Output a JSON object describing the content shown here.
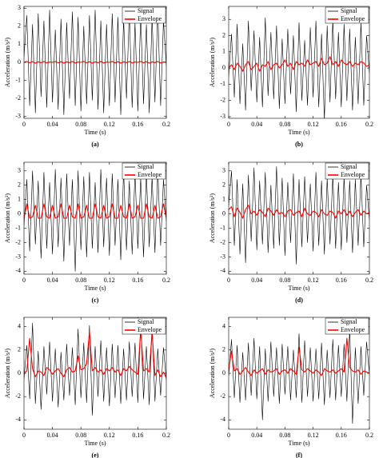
{
  "chart_data": [
    {
      "type": "line",
      "label": "(a)",
      "xlabel": "Time (s)",
      "ylabel": "Acceleration (m/s²)",
      "legend": "upper right",
      "xlim": [
        0,
        0.2
      ],
      "ylim": [
        -3.1,
        3.1
      ],
      "xticks": [
        0,
        0.04,
        0.08,
        0.12,
        0.16,
        0.2
      ],
      "yticks": [
        -3,
        -2,
        -1,
        0,
        1,
        2,
        3
      ],
      "x": [
        0,
        0.004,
        0.008,
        0.012,
        0.016,
        0.02,
        0.024,
        0.028,
        0.032,
        0.036,
        0.04,
        0.044,
        0.048,
        0.052,
        0.056,
        0.06,
        0.064,
        0.068,
        0.072,
        0.076,
        0.08,
        0.084,
        0.088,
        0.092,
        0.096,
        0.1,
        0.104,
        0.108,
        0.112,
        0.116,
        0.12,
        0.124,
        0.128,
        0.132,
        0.136,
        0.14,
        0.144,
        0.148,
        0.152,
        0.156,
        0.16,
        0.164,
        0.168,
        0.172,
        0.176,
        0.18,
        0.184,
        0.188,
        0.192,
        0.196,
        0.2
      ],
      "series": [
        {
          "name": "Signal",
          "color": "#000000",
          "values": [
            0.3,
            2.6,
            -2.4,
            2.1,
            -2.8,
            2.7,
            -1.9,
            2.3,
            -2.5,
            2.9,
            -2.2,
            1.8,
            -2.6,
            2.4,
            -2.9,
            2.2,
            -2.0,
            2.8,
            -2.4,
            2.5,
            -2.7,
            2.0,
            -2.3,
            2.6,
            -2.1,
            2.9,
            -2.6,
            2.3,
            -2.8,
            2.1,
            -2.4,
            2.7,
            -2.2,
            2.5,
            -2.9,
            2.4,
            -2.0,
            2.8,
            -2.5,
            2.2,
            -2.7,
            2.6,
            -2.3,
            2.1,
            -2.8,
            2.5,
            -2.2,
            2.9,
            -2.4,
            2.3,
            -0.2
          ]
        },
        {
          "name": "Envelope",
          "color": "#ff0000",
          "values": [
            0,
            0.05,
            -0.03,
            0.04,
            -0.05,
            0.03,
            -0.02,
            0.05,
            -0.04,
            0.02,
            0,
            0.05,
            -0.03,
            0.04,
            -0.05,
            0.03,
            -0.02,
            0.05,
            -0.04,
            0.02,
            0,
            0.05,
            -0.03,
            0.04,
            -0.05,
            0.03,
            -0.02,
            0.05,
            -0.04,
            0.02,
            0,
            0.05,
            -0.03,
            0.04,
            -0.05,
            0.03,
            -0.02,
            0.05,
            -0.04,
            0.02,
            0,
            0.05,
            -0.03,
            0.04,
            -0.05,
            0.03,
            -0.02,
            0.05,
            -0.04,
            0.02,
            0
          ]
        }
      ]
    },
    {
      "type": "line",
      "label": "(b)",
      "xlabel": "Time (s)",
      "ylabel": "Acceleration (m/s²)",
      "legend": "upper right",
      "xlim": [
        0,
        0.2
      ],
      "ylim": [
        -3.1,
        3.8
      ],
      "xticks": [
        0,
        0.04,
        0.08,
        0.12,
        0.16,
        0.2
      ],
      "yticks": [
        -3,
        -2,
        -1,
        0,
        1,
        2,
        3
      ],
      "x": [
        0,
        0.004,
        0.008,
        0.012,
        0.016,
        0.02,
        0.024,
        0.028,
        0.032,
        0.036,
        0.04,
        0.044,
        0.048,
        0.052,
        0.056,
        0.06,
        0.064,
        0.068,
        0.072,
        0.076,
        0.08,
        0.084,
        0.088,
        0.092,
        0.096,
        0.1,
        0.104,
        0.108,
        0.112,
        0.116,
        0.12,
        0.124,
        0.128,
        0.132,
        0.136,
        0.14,
        0.144,
        0.148,
        0.152,
        0.156,
        0.16,
        0.164,
        0.168,
        0.172,
        0.176,
        0.18,
        0.184,
        0.188,
        0.192,
        0.196,
        0.2
      ],
      "series": [
        {
          "name": "Signal",
          "color": "#000000",
          "values": [
            -0.5,
            2.1,
            -1.8,
            2.7,
            -2.2,
            1.5,
            -2.6,
            2.9,
            -1.4,
            2.3,
            -2.1,
            1.9,
            -2.4,
            3.1,
            -1.7,
            2.2,
            -1.9,
            2.6,
            -2.5,
            1.8,
            -2.2,
            2.4,
            -1.6,
            2.0,
            -2.7,
            2.8,
            -2.0,
            1.7,
            -2.3,
            2.5,
            -1.8,
            2.9,
            -2.4,
            2.1,
            -3.2,
            2.6,
            -2.1,
            3.0,
            -1.9,
            2.2,
            -2.4,
            2.7,
            -2.0,
            2.4,
            -2.6,
            1.9,
            -2.2,
            2.8,
            -2.3,
            2.0,
            -0.3
          ]
        },
        {
          "name": "Envelope",
          "color": "#ff0000",
          "values": [
            0,
            0.2,
            -0.1,
            0.3,
            0.1,
            -0.2,
            0.2,
            0.4,
            -0.1,
            0.1,
            0.3,
            -0.2,
            0.2,
            0.1,
            0.4,
            -0.1,
            0.2,
            0.3,
            0,
            0.2,
            0.5,
            0.1,
            0.3,
            -0.1,
            0.4,
            0.2,
            0.3,
            0.1,
            0.5,
            0.2,
            0.3,
            0.4,
            0.1,
            0.6,
            0.2,
            0.3,
            0.7,
            0.2,
            0.4,
            0.1,
            0.5,
            0.3,
            0.2,
            0.4,
            0.1,
            0.3,
            0.2,
            0.4,
            0.3,
            0.1,
            0.2
          ]
        }
      ]
    },
    {
      "type": "line",
      "label": "(c)",
      "xlabel": "Time (s)",
      "ylabel": "Acceleration (m/s²)",
      "legend": "upper right",
      "xlim": [
        0,
        0.2
      ],
      "ylim": [
        -4.2,
        3.6
      ],
      "xticks": [
        0,
        0.04,
        0.08,
        0.12,
        0.16,
        0.2
      ],
      "yticks": [
        -4,
        -3,
        -2,
        -1,
        0,
        1,
        2,
        3
      ],
      "x": [
        0,
        0.004,
        0.008,
        0.012,
        0.016,
        0.02,
        0.024,
        0.028,
        0.032,
        0.036,
        0.04,
        0.044,
        0.048,
        0.052,
        0.056,
        0.06,
        0.064,
        0.068,
        0.072,
        0.076,
        0.08,
        0.084,
        0.088,
        0.092,
        0.096,
        0.1,
        0.104,
        0.108,
        0.112,
        0.116,
        0.12,
        0.124,
        0.128,
        0.132,
        0.136,
        0.14,
        0.144,
        0.148,
        0.152,
        0.156,
        0.16,
        0.164,
        0.168,
        0.172,
        0.176,
        0.18,
        0.184,
        0.188,
        0.192,
        0.196,
        0.2
      ],
      "series": [
        {
          "name": "Signal",
          "color": "#000000",
          "values": [
            -0.8,
            2.4,
            -2.6,
            3.0,
            -2.1,
            2.3,
            -3.1,
            2.9,
            -2.4,
            2.2,
            -2.8,
            3.1,
            -2.3,
            2.5,
            -3.3,
            2.8,
            -2.2,
            2.4,
            -4.0,
            3.0,
            -2.5,
            2.6,
            -3.0,
            2.9,
            -2.4,
            2.2,
            -2.7,
            3.1,
            -2.3,
            2.5,
            -2.9,
            2.8,
            -2.2,
            2.4,
            -3.2,
            3.0,
            -2.5,
            2.3,
            -2.8,
            2.9,
            -2.4,
            2.5,
            -3.0,
            2.8,
            -2.3,
            2.6,
            -2.7,
            3.1,
            -2.2,
            2.4,
            -0.5
          ]
        },
        {
          "name": "Envelope",
          "color": "#ff0000",
          "values": [
            -0.3,
            0.7,
            -0.3,
            -0.2,
            0.6,
            -0.3,
            -0.3,
            0.7,
            -0.2,
            -0.3,
            0.6,
            -0.3,
            -0.2,
            0.7,
            -0.3,
            -0.3,
            0.6,
            -0.2,
            -0.3,
            0.7,
            -0.3,
            -0.2,
            0.6,
            -0.3,
            -0.3,
            0.7,
            -0.2,
            -0.3,
            0.6,
            -0.3,
            -0.2,
            0.7,
            -0.3,
            -0.3,
            0.6,
            -0.2,
            -0.3,
            0.7,
            -0.3,
            -0.2,
            0.6,
            -0.3,
            -0.3,
            0.7,
            -0.2,
            -0.3,
            0.6,
            -0.3,
            -0.2,
            0.7,
            -0.3
          ]
        }
      ]
    },
    {
      "type": "line",
      "label": "(d)",
      "xlabel": "Time (s)",
      "ylabel": "Acceleration (m/s²)",
      "legend": "upper right",
      "xlim": [
        0,
        0.2
      ],
      "ylim": [
        -4.2,
        3.6
      ],
      "xticks": [
        0,
        0.04,
        0.08,
        0.12,
        0.16,
        0.2
      ],
      "yticks": [
        -4,
        -3,
        -2,
        -1,
        0,
        1,
        2,
        3
      ],
      "x": [
        0,
        0.004,
        0.008,
        0.012,
        0.016,
        0.02,
        0.024,
        0.028,
        0.032,
        0.036,
        0.04,
        0.044,
        0.048,
        0.052,
        0.056,
        0.06,
        0.064,
        0.068,
        0.072,
        0.076,
        0.08,
        0.084,
        0.088,
        0.092,
        0.096,
        0.1,
        0.104,
        0.108,
        0.112,
        0.116,
        0.12,
        0.124,
        0.128,
        0.132,
        0.136,
        0.14,
        0.144,
        0.148,
        0.152,
        0.156,
        0.16,
        0.164,
        0.168,
        0.172,
        0.176,
        0.18,
        0.184,
        0.188,
        0.192,
        0.196,
        0.2
      ],
      "series": [
        {
          "name": "Signal",
          "color": "#000000",
          "values": [
            0.6,
            3.0,
            -2.2,
            2.4,
            -2.8,
            2.1,
            -3.4,
            2.7,
            -1.9,
            3.2,
            -2.5,
            2.3,
            -2.1,
            2.9,
            -2.7,
            2.0,
            -2.4,
            3.3,
            -2.2,
            2.5,
            -2.9,
            2.2,
            -2.0,
            2.8,
            -3.5,
            2.4,
            -2.3,
            2.6,
            -2.0,
            2.1,
            -2.6,
            2.9,
            -2.2,
            2.3,
            -2.8,
            2.5,
            -2.1,
            2.7,
            -2.4,
            2.2,
            -2.5,
            2.6,
            -2.0,
            2.3,
            -2.7,
            2.4,
            -2.2,
            2.8,
            -2.3,
            2.0,
            -0.4
          ]
        },
        {
          "name": "Envelope",
          "color": "#ff0000",
          "values": [
            0.3,
            0.5,
            -0.2,
            0.4,
            0.1,
            -0.3,
            0.3,
            0.6,
            0,
            0.2,
            -0.1,
            0.3,
            0.1,
            -0.2,
            0.4,
            0.2,
            -0.1,
            0.3,
            0,
            0.1,
            -0.2,
            0.2,
            0.3,
            -0.1,
            0.1,
            0.2,
            -0.2,
            0.4,
            0,
            -0.1,
            0.2,
            0.1,
            -0.2,
            0.3,
            0,
            -0.1,
            0.2,
            0.1,
            -0.3,
            0.2,
            0,
            0.3,
            -0.1,
            0.2,
            -0.2,
            0.1,
            0.3,
            -0.1,
            0.2,
            0,
            0.1
          ]
        }
      ]
    },
    {
      "type": "line",
      "label": "(e)",
      "xlabel": "Time (s)",
      "ylabel": "Acceleration (m/s²)",
      "legend": "upper right",
      "xlim": [
        0,
        0.2
      ],
      "ylim": [
        -4.8,
        4.8
      ],
      "xticks": [
        0,
        0.04,
        0.08,
        0.12,
        0.16,
        0.2
      ],
      "yticks": [
        -4,
        -2,
        0,
        2,
        4
      ],
      "x": [
        0,
        0.004,
        0.008,
        0.012,
        0.016,
        0.02,
        0.024,
        0.028,
        0.032,
        0.036,
        0.04,
        0.044,
        0.048,
        0.052,
        0.056,
        0.06,
        0.064,
        0.068,
        0.072,
        0.076,
        0.08,
        0.084,
        0.088,
        0.092,
        0.096,
        0.1,
        0.104,
        0.108,
        0.112,
        0.116,
        0.12,
        0.124,
        0.128,
        0.132,
        0.136,
        0.14,
        0.144,
        0.148,
        0.152,
        0.156,
        0.16,
        0.164,
        0.168,
        0.172,
        0.176,
        0.18,
        0.184,
        0.188,
        0.192,
        0.196,
        0.2
      ],
      "series": [
        {
          "name": "Signal",
          "color": "#000000",
          "values": [
            -0.5,
            2.4,
            -2.2,
            4.3,
            -2.6,
            1.9,
            -3.1,
            2.3,
            -1.8,
            2.7,
            -2.4,
            2.1,
            -2.9,
            1.8,
            -2.3,
            2.5,
            -1.9,
            2.2,
            -2.7,
            3.8,
            -2.1,
            2.6,
            -2.5,
            4.1,
            -3.6,
            2.3,
            -2.0,
            2.8,
            -2.4,
            2.2,
            -2.8,
            2.5,
            -2.1,
            2.4,
            -2.6,
            2.1,
            -2.3,
            2.7,
            -2.0,
            2.6,
            -2.5,
            4.4,
            -2.2,
            2.3,
            -2.7,
            4.2,
            -2.4,
            2.1,
            -1.9,
            2.2,
            -0.6
          ]
        },
        {
          "name": "Envelope",
          "color": "#ff0000",
          "values": [
            0,
            0.2,
            3.0,
            0.4,
            -0.3,
            0.2,
            0.1,
            -0.2,
            0.5,
            0.3,
            -0.1,
            0.2,
            0.4,
            0,
            -0.3,
            0.3,
            0.5,
            0.1,
            0.2,
            1.5,
            0.3,
            0.4,
            0.8,
            3.6,
            0.2,
            0.5,
            0.1,
            0.3,
            -0.1,
            0.4,
            0.2,
            0.5,
            0.1,
            0.3,
            -0.2,
            0.4,
            0.2,
            0.6,
            0.3,
            0.1,
            -0.1,
            3.7,
            0.2,
            0.4,
            0.1,
            3.5,
            -0.2,
            0.3,
            -0.3,
            0.1,
            -0.4
          ]
        }
      ]
    },
    {
      "type": "line",
      "label": "(f)",
      "xlabel": "Time (s)",
      "ylabel": "Acceleration (m/s²)",
      "legend": "upper right",
      "xlim": [
        0,
        0.2
      ],
      "ylim": [
        -4.8,
        4.8
      ],
      "xticks": [
        0,
        0.04,
        0.08,
        0.12,
        0.16,
        0.2
      ],
      "yticks": [
        -4,
        -2,
        0,
        2,
        4
      ],
      "x": [
        0,
        0.004,
        0.008,
        0.012,
        0.016,
        0.02,
        0.024,
        0.028,
        0.032,
        0.036,
        0.04,
        0.044,
        0.048,
        0.052,
        0.056,
        0.06,
        0.064,
        0.068,
        0.072,
        0.076,
        0.08,
        0.084,
        0.088,
        0.092,
        0.096,
        0.1,
        0.104,
        0.108,
        0.112,
        0.116,
        0.12,
        0.124,
        0.128,
        0.132,
        0.136,
        0.14,
        0.144,
        0.148,
        0.152,
        0.156,
        0.16,
        0.164,
        0.168,
        0.172,
        0.176,
        0.18,
        0.184,
        0.188,
        0.192,
        0.196,
        0.2
      ],
      "series": [
        {
          "name": "Signal",
          "color": "#000000",
          "values": [
            -0.2,
            2.9,
            -2.1,
            2.4,
            -2.5,
            1.8,
            -2.3,
            2.6,
            -1.9,
            3.0,
            -2.2,
            2.3,
            -4.0,
            2.1,
            -2.4,
            2.7,
            -2.0,
            2.2,
            -2.6,
            2.5,
            -1.8,
            2.3,
            -2.3,
            2.0,
            -2.1,
            3.4,
            -2.5,
            2.8,
            -2.0,
            2.2,
            -2.4,
            2.1,
            -2.2,
            2.6,
            -2.7,
            2.0,
            -2.1,
            2.9,
            -2.3,
            2.4,
            -2.0,
            2.5,
            -2.4,
            3.8,
            -4.3,
            2.2,
            -2.6,
            2.3,
            -1.9,
            2.7,
            -0.1
          ]
        },
        {
          "name": "Envelope",
          "color": "#ff0000",
          "values": [
            0.3,
            1.9,
            0.2,
            0.4,
            -0.1,
            0.2,
            0.5,
            0.1,
            -0.2,
            0.3,
            0,
            0.2,
            0.4,
            -0.1,
            0.3,
            0.1,
            0.2,
            0.4,
            -0.1,
            0.2,
            0.3,
            0,
            0.4,
            0.2,
            -0.1,
            2.2,
            0.3,
            0.1,
            0.4,
            0.2,
            0,
            0.3,
            0.1,
            -0.2,
            0.4,
            0.2,
            0.1,
            0.3,
            0,
            0.2,
            0.4,
            0.1,
            3.0,
            0.5,
            0.2,
            0.1,
            0.3,
            -0.1,
            0.2,
            0.1,
            0
          ]
        }
      ]
    }
  ]
}
